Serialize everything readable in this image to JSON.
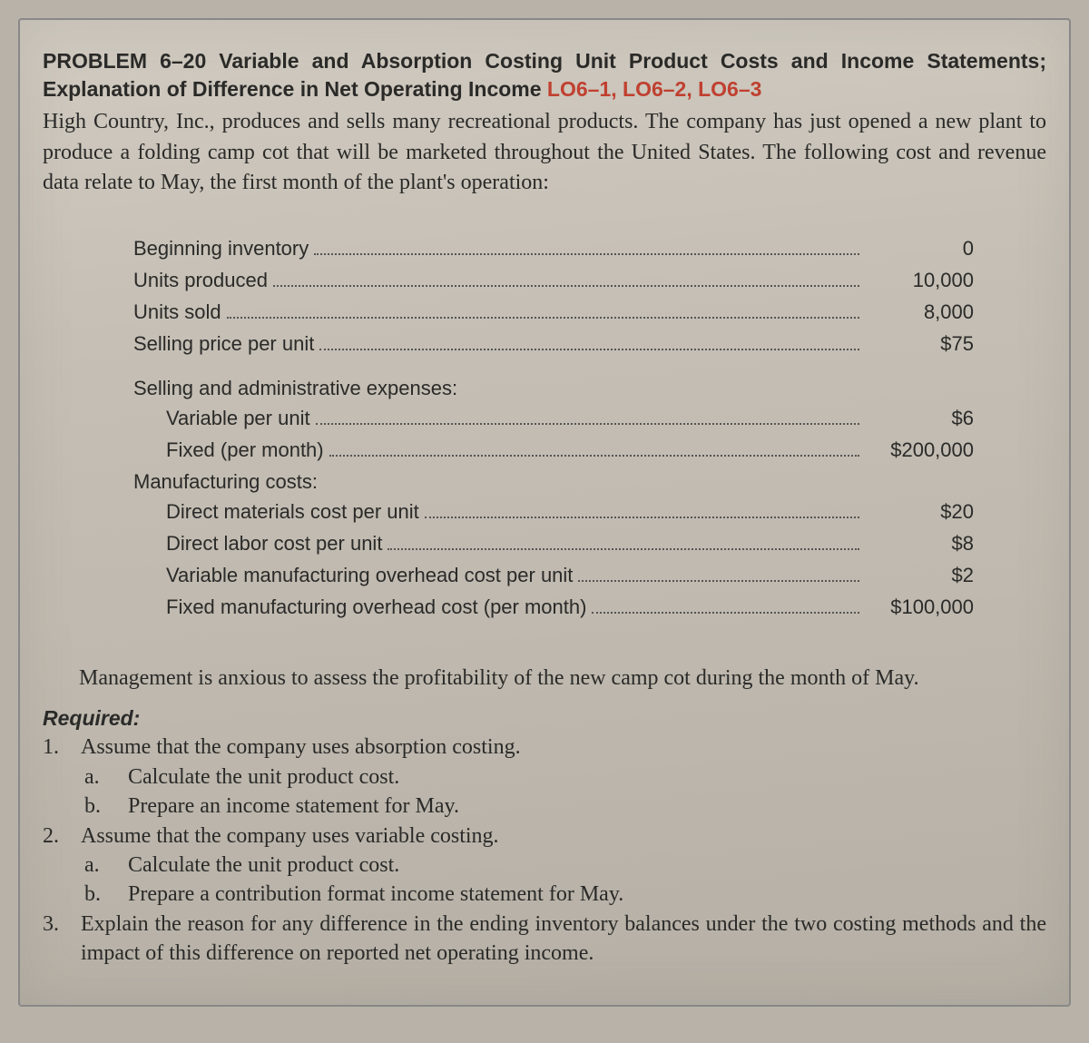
{
  "header": {
    "problem_label": "PROBLEM 6–20 Variable and Absorption Costing Unit Product Costs and Income Statements; Explanation of Difference in Net Operating Income",
    "lo_refs": "LO6–1, LO6–2, LO6–3"
  },
  "intro": "High Country, Inc., produces and sells many recreational products. The company has just opened a new plant to produce a folding camp cot that will be marketed throughout the United States. The following cost and revenue data relate to May, the first month of the plant's operation:",
  "data": {
    "group1": [
      {
        "label": "Beginning inventory",
        "value": "0"
      },
      {
        "label": "Units produced",
        "value": "10,000"
      },
      {
        "label": "Units sold",
        "value": "8,000"
      },
      {
        "label": "Selling price per unit",
        "value": "$75"
      }
    ],
    "sa_header": "Selling and administrative expenses:",
    "sa_items": [
      {
        "label": "Variable per unit",
        "value": "$6"
      },
      {
        "label": "Fixed (per month)",
        "value": "$200,000"
      }
    ],
    "mfg_header": "Manufacturing costs:",
    "mfg_items": [
      {
        "label": "Direct materials cost per unit",
        "value": "$20"
      },
      {
        "label": "Direct labor cost per unit",
        "value": "$8"
      },
      {
        "label": "Variable manufacturing overhead cost per unit",
        "value": "$2"
      },
      {
        "label": "Fixed manufacturing overhead cost (per month)",
        "value": "$100,000"
      }
    ]
  },
  "outro": "Management is anxious to assess the profitability of the new camp cot during the month of May.",
  "required": {
    "label": "Required:",
    "items": [
      {
        "num": "1.",
        "text": "Assume that the company uses absorption costing.",
        "subs": [
          {
            "letter": "a.",
            "text": "Calculate the unit product cost."
          },
          {
            "letter": "b.",
            "text": "Prepare an income statement for May."
          }
        ]
      },
      {
        "num": "2.",
        "text": "Assume that the company uses variable costing.",
        "subs": [
          {
            "letter": "a.",
            "text": "Calculate the unit product cost."
          },
          {
            "letter": "b.",
            "text": "Prepare a contribution format income statement for May."
          }
        ]
      },
      {
        "num": "3.",
        "text": "Explain the reason for any difference in the ending inventory balances under the two costing methods and the impact of this difference on reported net operating income.",
        "subs": []
      }
    ]
  },
  "style": {
    "page_bg": "#c5bfb5",
    "text_color": "#2a2a28",
    "lo_color": "#c04030",
    "body_font_pt": 24,
    "heading_font_pt": 23,
    "data_font_pt": 22
  }
}
